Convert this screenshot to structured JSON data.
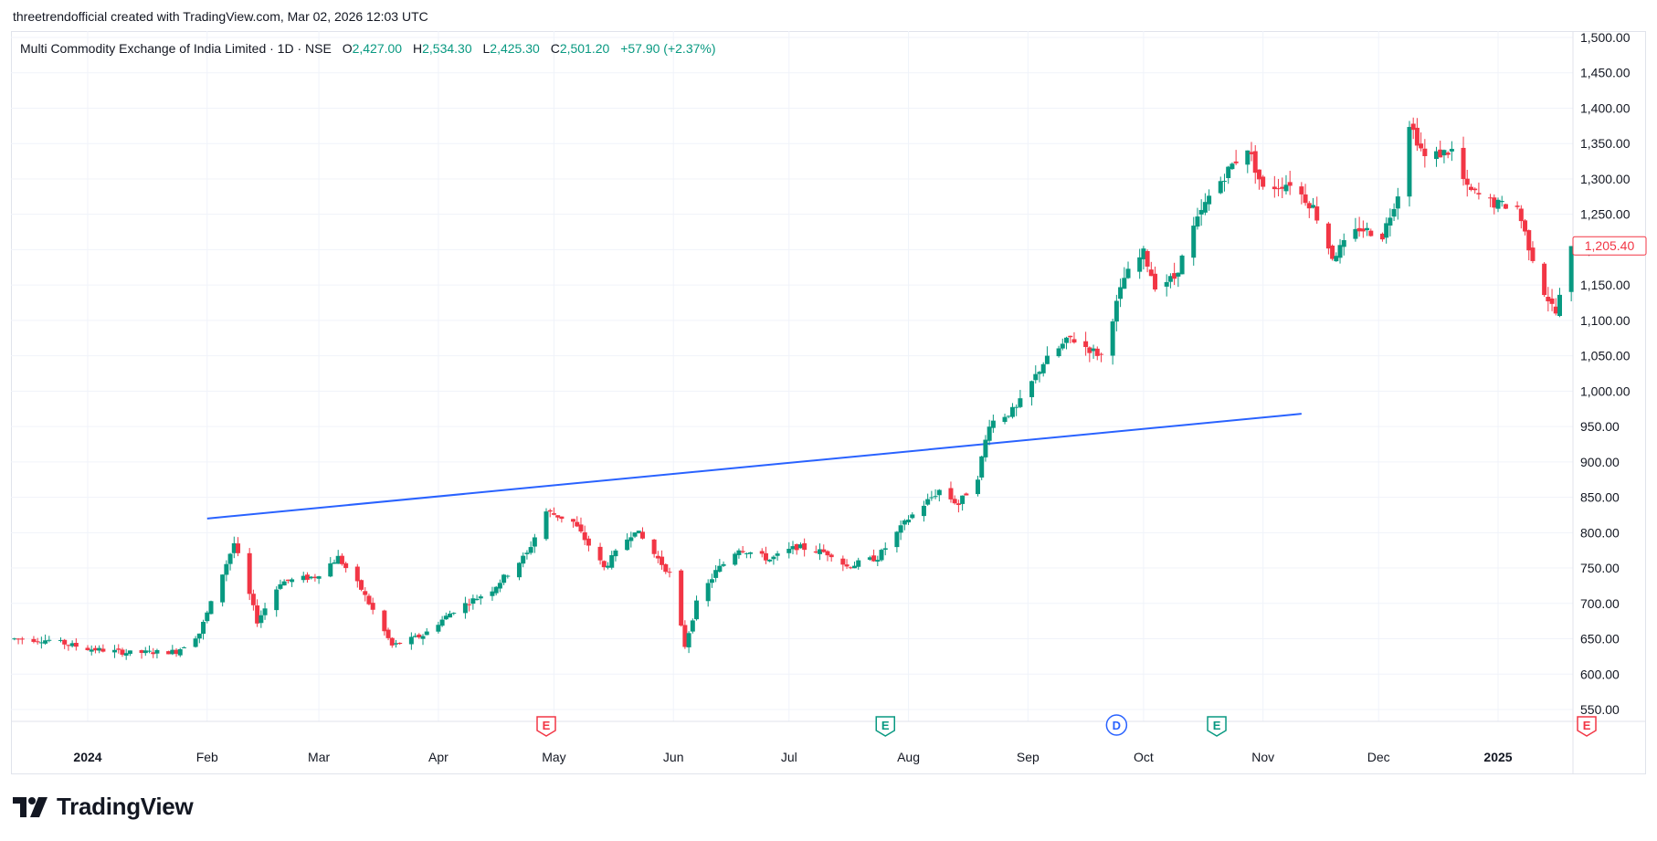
{
  "caption": "threetrendofficial created with TradingView.com, Mar 02, 2026 12:03 UTC",
  "legend": {
    "symbol": "Multi Commodity Exchange of India Limited · 1D · NSE",
    "open_label": "O",
    "open": "2,427.00",
    "high_label": "H",
    "high": "2,534.30",
    "low_label": "L",
    "low": "2,425.30",
    "close_label": "C",
    "close": "2,501.20",
    "change": "+57.90 (+2.37%)"
  },
  "brand": {
    "name": "TradingView"
  },
  "colors": {
    "up": "#089981",
    "down": "#f23645",
    "trendline": "#2962ff",
    "grid": "#f0f3fa",
    "price_tag": "#f23645"
  },
  "price_tag": {
    "value": "1,205.40"
  },
  "events": [
    {
      "label": "E",
      "month": "May",
      "color": "#f23645"
    },
    {
      "label": "E",
      "month": "Aug",
      "color": "#089981"
    },
    {
      "label": "D",
      "month": "Oct",
      "color": "#2962ff"
    },
    {
      "label": "E",
      "month": "Oct",
      "color": "#089981"
    },
    {
      "label": "E",
      "month": "Jan",
      "color": "#f23645"
    }
  ],
  "chart_data": {
    "type": "candlestick",
    "interval": "1D",
    "grid": true,
    "y_axis_position": "right",
    "ylim": [
      520,
      1510
    ],
    "y_ticks": [
      550,
      600,
      650,
      700,
      750,
      800,
      850,
      900,
      950,
      1000,
      1050,
      1100,
      1150,
      1200,
      1250,
      1300,
      1350,
      1400,
      1450,
      1500
    ],
    "y_tick_labels": [
      "550.00",
      "600.00",
      "650.00",
      "700.00",
      "750.00",
      "800.00",
      "850.00",
      "900.00",
      "950.00",
      "1,000.00",
      "1,050.00",
      "1,100.00",
      "1,150.00",
      "1,200.00",
      "1,250.00",
      "1,300.00",
      "1,350.00",
      "1,400.00",
      "1,450.00",
      "1,500.00"
    ],
    "x_ticks": [
      {
        "label": "2024",
        "date": "2024-01-01",
        "bold": true
      },
      {
        "label": "Feb",
        "date": "2024-02-01"
      },
      {
        "label": "Mar",
        "date": "2024-03-01"
      },
      {
        "label": "Apr",
        "date": "2024-04-01"
      },
      {
        "label": "May",
        "date": "2024-05-01"
      },
      {
        "label": "Jun",
        "date": "2024-06-01"
      },
      {
        "label": "Jul",
        "date": "2024-07-01"
      },
      {
        "label": "Aug",
        "date": "2024-08-01"
      },
      {
        "label": "Sep",
        "date": "2024-09-01"
      },
      {
        "label": "Oct",
        "date": "2024-10-01"
      },
      {
        "label": "Nov",
        "date": "2024-11-01"
      },
      {
        "label": "Dec",
        "date": "2024-12-01"
      },
      {
        "label": "2025",
        "date": "2025-01-01",
        "bold": true
      }
    ],
    "trendline": {
      "start": {
        "date": "2024-02-01",
        "price": 820
      },
      "end": {
        "date": "2024-11-11",
        "price": 968
      }
    },
    "anchors": [
      {
        "date": "2023-12-13",
        "price": 650
      },
      {
        "date": "2023-12-22",
        "price": 648
      },
      {
        "date": "2024-01-01",
        "price": 636
      },
      {
        "date": "2024-01-12",
        "price": 630
      },
      {
        "date": "2024-01-24",
        "price": 632
      },
      {
        "date": "2024-01-30",
        "price": 658
      },
      {
        "date": "2024-02-02",
        "price": 700
      },
      {
        "date": "2024-02-08",
        "price": 785
      },
      {
        "date": "2024-02-14",
        "price": 675
      },
      {
        "date": "2024-02-20",
        "price": 730
      },
      {
        "date": "2024-02-29",
        "price": 738
      },
      {
        "date": "2024-03-06",
        "price": 765
      },
      {
        "date": "2024-03-12",
        "price": 720
      },
      {
        "date": "2024-03-20",
        "price": 640
      },
      {
        "date": "2024-03-28",
        "price": 655
      },
      {
        "date": "2024-04-05",
        "price": 690
      },
      {
        "date": "2024-04-15",
        "price": 720
      },
      {
        "date": "2024-04-24",
        "price": 770
      },
      {
        "date": "2024-04-29",
        "price": 830
      },
      {
        "date": "2024-05-06",
        "price": 815
      },
      {
        "date": "2024-05-14",
        "price": 750
      },
      {
        "date": "2024-05-22",
        "price": 805
      },
      {
        "date": "2024-05-31",
        "price": 742
      },
      {
        "date": "2024-06-04",
        "price": 640
      },
      {
        "date": "2024-06-07",
        "price": 700
      },
      {
        "date": "2024-06-12",
        "price": 745
      },
      {
        "date": "2024-06-18",
        "price": 778
      },
      {
        "date": "2024-06-26",
        "price": 762
      },
      {
        "date": "2024-07-03",
        "price": 780
      },
      {
        "date": "2024-07-12",
        "price": 770
      },
      {
        "date": "2024-07-16",
        "price": 752
      },
      {
        "date": "2024-07-24",
        "price": 765
      },
      {
        "date": "2024-08-01",
        "price": 820
      },
      {
        "date": "2024-08-09",
        "price": 860
      },
      {
        "date": "2024-08-14",
        "price": 840
      },
      {
        "date": "2024-08-19",
        "price": 880
      },
      {
        "date": "2024-08-22",
        "price": 955
      },
      {
        "date": "2024-08-29",
        "price": 975
      },
      {
        "date": "2024-09-05",
        "price": 1040
      },
      {
        "date": "2024-09-12",
        "price": 1075
      },
      {
        "date": "2024-09-20",
        "price": 1050
      },
      {
        "date": "2024-09-26",
        "price": 1160
      },
      {
        "date": "2024-10-01",
        "price": 1195
      },
      {
        "date": "2024-10-04",
        "price": 1150
      },
      {
        "date": "2024-10-09",
        "price": 1160
      },
      {
        "date": "2024-10-14",
        "price": 1230
      },
      {
        "date": "2024-10-18",
        "price": 1275
      },
      {
        "date": "2024-10-24",
        "price": 1320
      },
      {
        "date": "2024-10-28",
        "price": 1345
      },
      {
        "date": "2024-11-01",
        "price": 1285
      },
      {
        "date": "2024-11-08",
        "price": 1295
      },
      {
        "date": "2024-11-14",
        "price": 1260
      },
      {
        "date": "2024-11-19",
        "price": 1190
      },
      {
        "date": "2024-11-26",
        "price": 1230
      },
      {
        "date": "2024-12-02",
        "price": 1220
      },
      {
        "date": "2024-12-06",
        "price": 1280
      },
      {
        "date": "2024-12-09",
        "price": 1380
      },
      {
        "date": "2024-12-13",
        "price": 1330
      },
      {
        "date": "2024-12-20",
        "price": 1340
      },
      {
        "date": "2024-12-24",
        "price": 1285
      },
      {
        "date": "2024-12-31",
        "price": 1265
      },
      {
        "date": "2025-01-06",
        "price": 1260
      },
      {
        "date": "2025-01-09",
        "price": 1205
      },
      {
        "date": "2025-01-13",
        "price": 1140
      },
      {
        "date": "2025-01-16",
        "price": 1110
      },
      {
        "date": "2025-01-20",
        "price": 1200
      },
      {
        "date": "2025-01-23",
        "price": 1205
      }
    ],
    "last_price": 1205.4,
    "visible_range": {
      "start": "2023-12-13",
      "end": "2025-01-23"
    }
  }
}
